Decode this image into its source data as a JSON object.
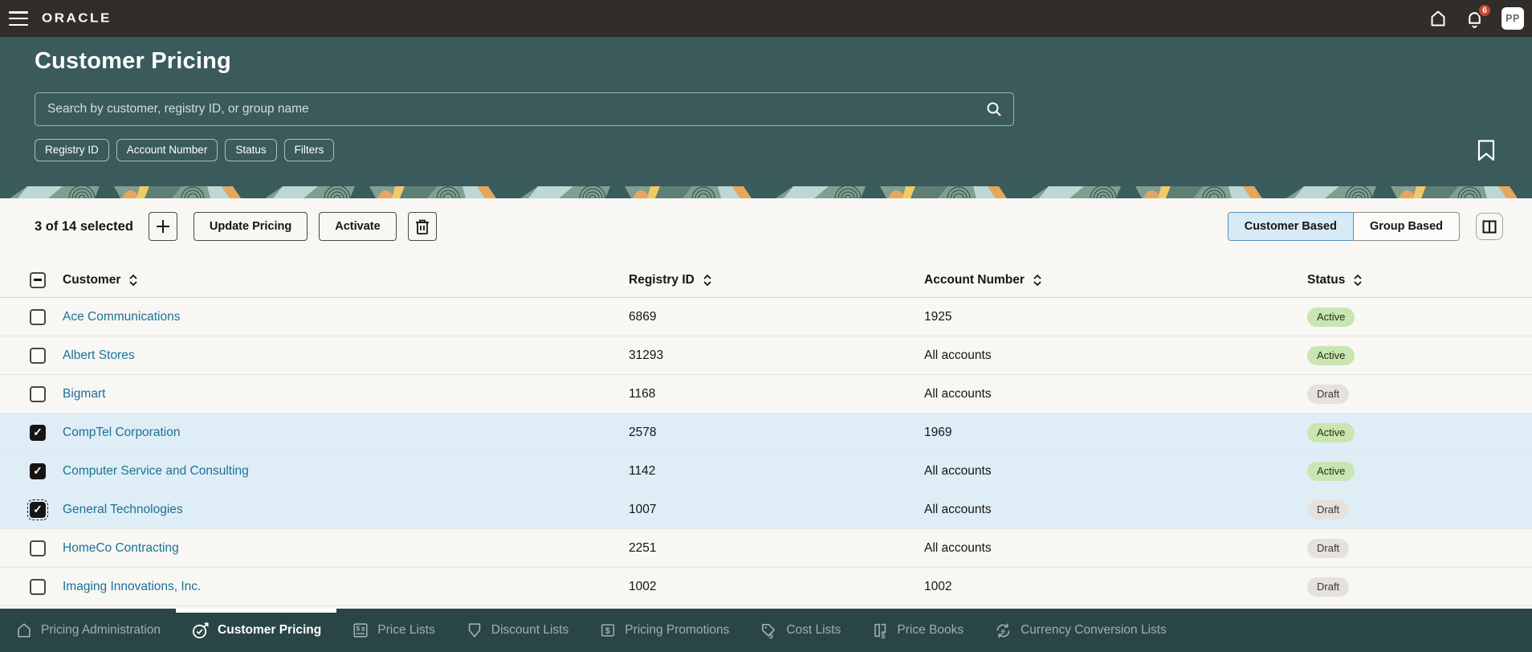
{
  "topbar": {
    "brand": "ORACLE",
    "notification_count": "6",
    "avatar_initials": "PP"
  },
  "header": {
    "title": "Customer Pricing",
    "search_placeholder": "Search by customer, registry ID, or group name",
    "chips": [
      "Registry ID",
      "Account Number",
      "Status",
      "Filters"
    ]
  },
  "toolbar": {
    "selection_summary": "3 of 14 selected",
    "add_label": "+",
    "update_pricing_label": "Update Pricing",
    "activate_label": "Activate",
    "view_toggle": {
      "options": [
        "Customer Based",
        "Group Based"
      ],
      "selected": "Customer Based"
    }
  },
  "table": {
    "columns": [
      "Customer",
      "Registry ID",
      "Account Number",
      "Status"
    ],
    "rows": [
      {
        "customer": "Ace Communications",
        "registry_id": "6869",
        "account_number": "1925",
        "status": "Active",
        "checked": false,
        "selected": false,
        "focused": false
      },
      {
        "customer": "Albert Stores",
        "registry_id": "31293",
        "account_number": "All accounts",
        "status": "Active",
        "checked": false,
        "selected": false,
        "focused": false
      },
      {
        "customer": "Bigmart",
        "registry_id": "1168",
        "account_number": "All accounts",
        "status": "Draft",
        "checked": false,
        "selected": false,
        "focused": false
      },
      {
        "customer": "CompTel Corporation",
        "registry_id": "2578",
        "account_number": "1969",
        "status": "Active",
        "checked": true,
        "selected": true,
        "focused": false
      },
      {
        "customer": "Computer Service and Consulting",
        "registry_id": "1142",
        "account_number": "All accounts",
        "status": "Active",
        "checked": true,
        "selected": true,
        "focused": false
      },
      {
        "customer": "General Technologies",
        "registry_id": "1007",
        "account_number": "All accounts",
        "status": "Draft",
        "checked": true,
        "selected": true,
        "focused": true
      },
      {
        "customer": "HomeCo Contracting",
        "registry_id": "2251",
        "account_number": "All accounts",
        "status": "Draft",
        "checked": false,
        "selected": false,
        "focused": false
      },
      {
        "customer": "Imaging Innovations, Inc.",
        "registry_id": "1002",
        "account_number": "1002",
        "status": "Draft",
        "checked": false,
        "selected": false,
        "focused": false
      }
    ]
  },
  "bottom_nav": {
    "items": [
      {
        "label": "Pricing Administration",
        "icon": "home-icon",
        "active": false
      },
      {
        "label": "Customer Pricing",
        "icon": "target-icon",
        "active": true
      },
      {
        "label": "Price Lists",
        "icon": "price-list-icon",
        "active": false
      },
      {
        "label": "Discount Lists",
        "icon": "tag-icon",
        "active": false
      },
      {
        "label": "Pricing Promotions",
        "icon": "dollar-square-icon",
        "active": false
      },
      {
        "label": "Cost Lists",
        "icon": "tag-dollar-icon",
        "active": false
      },
      {
        "label": "Price Books",
        "icon": "book-dollar-icon",
        "active": false
      },
      {
        "label": "Currency Conversion Lists",
        "icon": "currency-exchange-icon",
        "active": false
      }
    ]
  },
  "colors": {
    "topbar_bg": "#312D2A",
    "header_bg": "#3A5A5B",
    "nav_bg": "#2A4546",
    "page_bg": "#F8F7F4",
    "selected_row_bg": "#DFEDF6",
    "link": "#1A7296",
    "active_pill_bg": "#C9E5B2",
    "draft_pill_bg": "#E5E2DD",
    "badge_bg": "#C74634",
    "segment_selected_bg": "#D8EAF5",
    "segment_selected_border": "#5B8FB8"
  }
}
